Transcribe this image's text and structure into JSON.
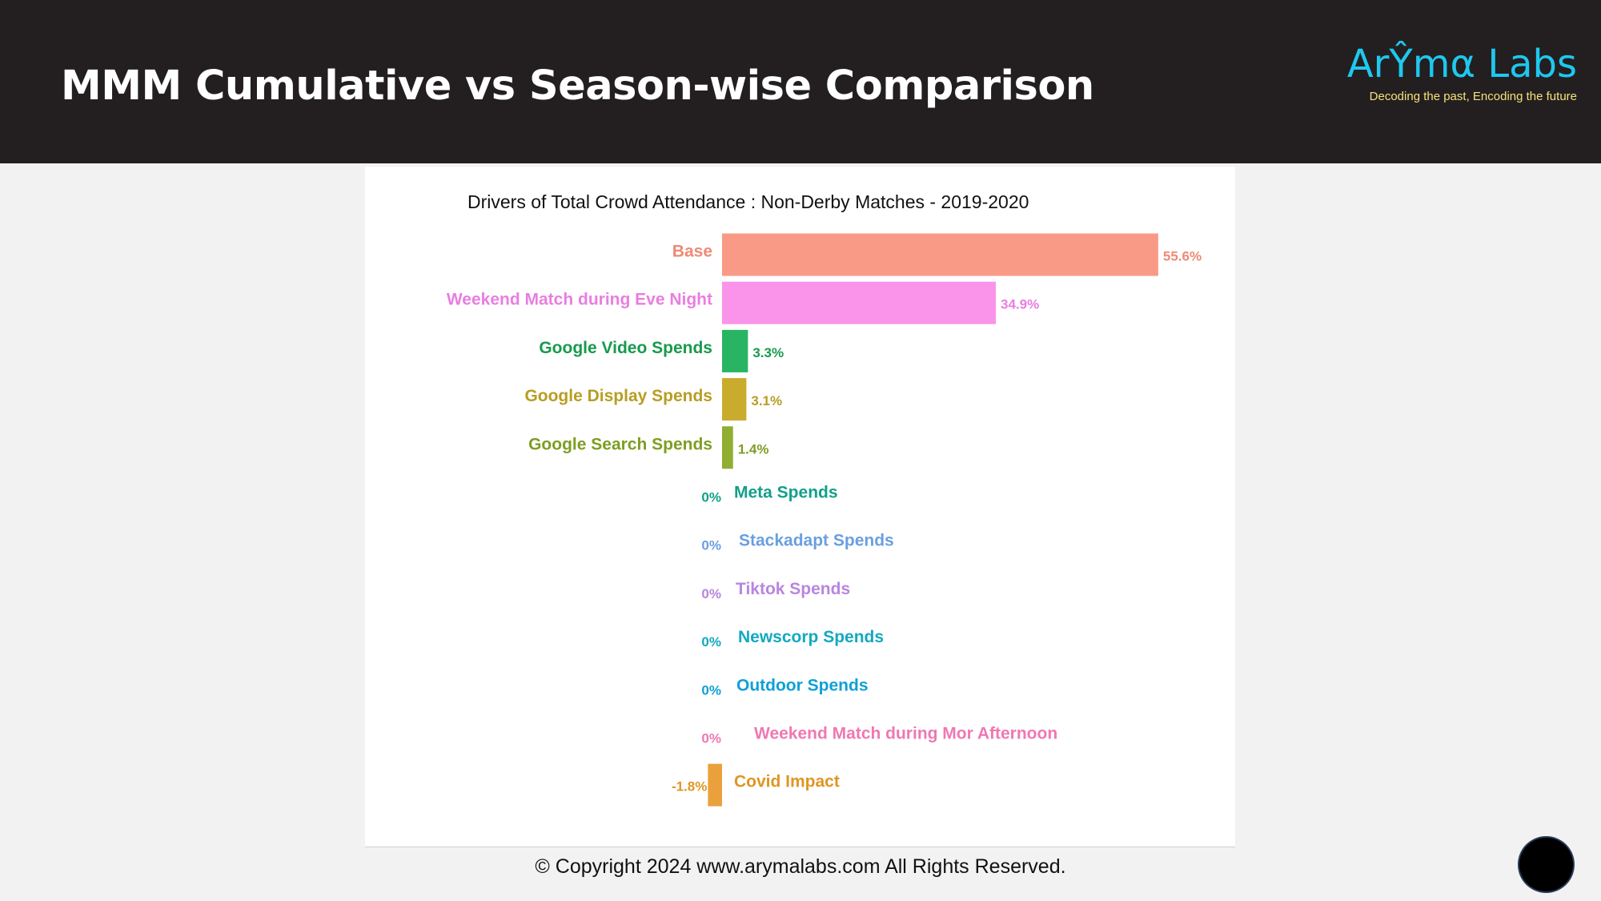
{
  "header": {
    "title": "MMM Cumulative vs Season-wise Comparison",
    "logo_name": "ArŶmα Labs",
    "logo_tagline": "Decoding the past, Encoding the future",
    "background": "#231f20",
    "logo_color": "#1ec8ef",
    "tagline_color": "#f3e27a"
  },
  "footer": {
    "copyright": "© Copyright 2024 www.arymalabs.com All Rights Reserved."
  },
  "nav": {
    "icon": "circle-nav-button"
  },
  "chart_data": {
    "type": "bar",
    "orientation": "horizontal",
    "title": "Drivers of Total Crowd Attendance : Non-Derby Matches - 2019-2020",
    "xlabel": "",
    "ylabel": "",
    "grid": false,
    "unit": "%",
    "categories": [
      "Base",
      "Weekend Match during Eve Night",
      "Google Video Spends",
      "Google Display Spends",
      "Google Search Spends",
      "Meta Spends",
      "Stackadapt Spends",
      "Tiktok Spends",
      "Newscorp Spends",
      "Outdoor Spends",
      "Weekend Match during Mor Afternoon",
      "Covid Impact"
    ],
    "values": [
      55.6,
      34.9,
      3.3,
      3.1,
      1.4,
      0,
      0,
      0,
      0,
      0,
      0,
      -1.8
    ],
    "value_labels": [
      "55.6%",
      "34.9%",
      "3.3%",
      "3.1%",
      "1.4%",
      "0%",
      "0%",
      "0%",
      "0%",
      "0%",
      "0%",
      "-1.8%"
    ],
    "colors": [
      "#f99a86",
      "#f994ea",
      "#28b463",
      "#c9ac2e",
      "#8fae32",
      "#14a88d",
      "#6fa2e6",
      "#c18be8",
      "#16adc4",
      "#11a4d8",
      "#f07bb8",
      "#eba13b"
    ],
    "label_colors": [
      "#ee8a76",
      "#e97ee0",
      "#179a4c",
      "#b89d22",
      "#7d9e22",
      "#12a08a",
      "#6a9fe0",
      "#b985e0",
      "#13a9c0",
      "#0fa0d6",
      "#ef78b3",
      "#de9623"
    ]
  }
}
